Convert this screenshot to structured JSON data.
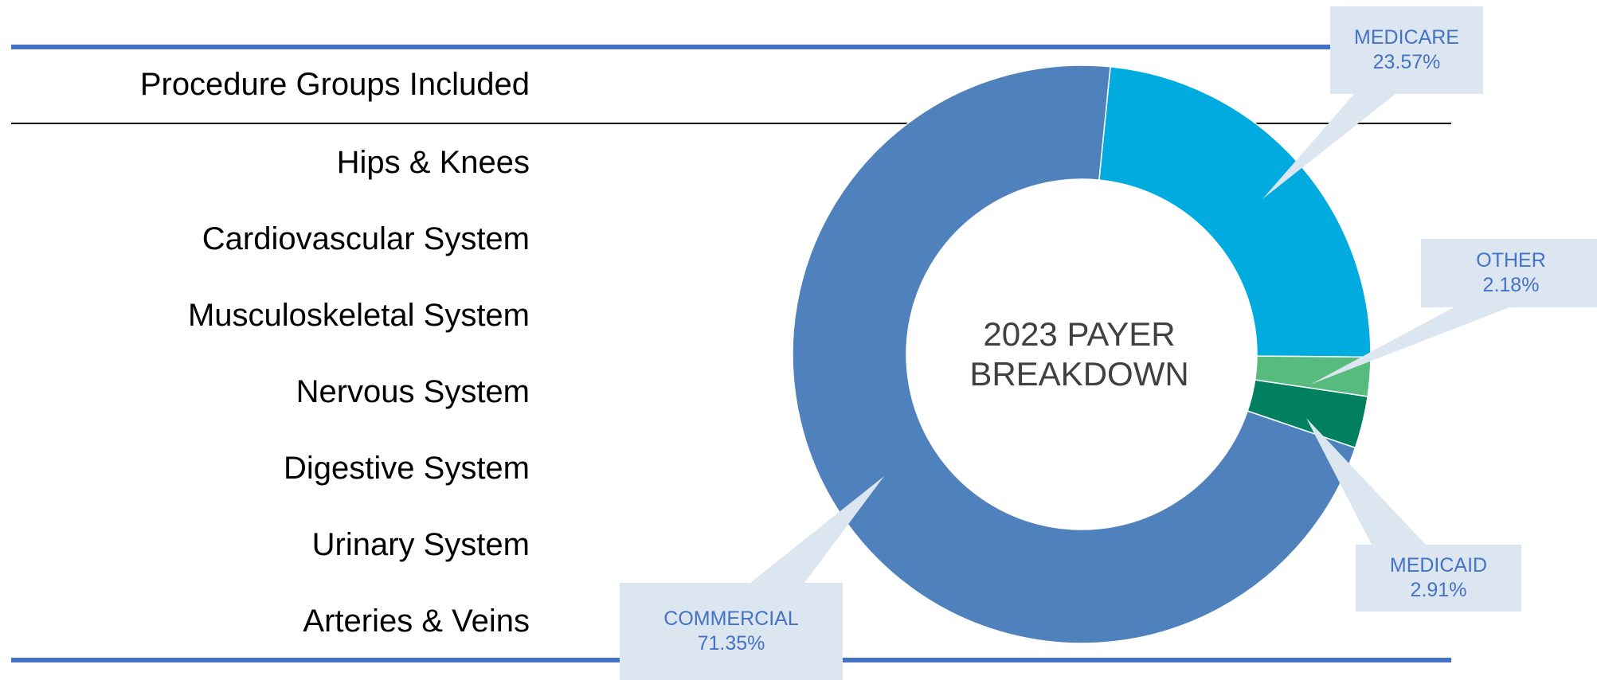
{
  "table": {
    "header": "Procedure Groups Included",
    "rows": [
      "Hips & Knees",
      "Cardiovascular System",
      "Musculoskeletal System",
      "Nervous System",
      "Digestive System",
      "Urinary System",
      "Arteries & Veins"
    ]
  },
  "chart_data": {
    "type": "pie",
    "variant": "donut",
    "title": "2023 PAYER BREAKDOWN",
    "title_lines": [
      "2023 PAYER",
      "BREAKDOWN"
    ],
    "slices": [
      {
        "label": "MEDICARE",
        "value": 23.57,
        "display": "23.57%",
        "color": "#00abe0"
      },
      {
        "label": "OTHER",
        "value": 2.18,
        "display": "2.18%",
        "color": "#56bb7d"
      },
      {
        "label": "MEDICAID",
        "value": 2.91,
        "display": "2.91%",
        "color": "#008060"
      },
      {
        "label": "COMMERCIAL",
        "value": 71.35,
        "display": "71.35%",
        "color": "#4f81bd"
      }
    ],
    "legend": "none",
    "label_style": "callouts"
  },
  "colors": {
    "rule_accent": "#4472c4",
    "callout_fill": "#dce6f1",
    "callout_text": "#4472c4",
    "center_text": "#404040"
  }
}
